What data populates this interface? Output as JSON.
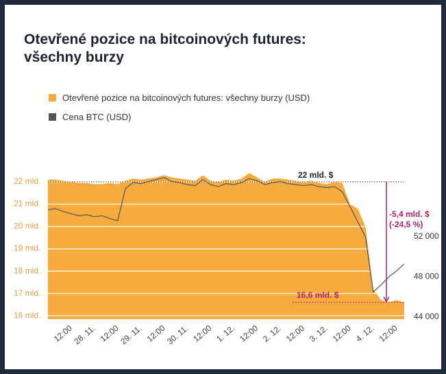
{
  "chart_data": {
    "type": "area-line",
    "title": "Otevřené pozice na bitcoinových futures: všechny burzy",
    "x": [
      0,
      4,
      8,
      12,
      16,
      20,
      24,
      28,
      32,
      36,
      40,
      44,
      48,
      52,
      56,
      60,
      64,
      68,
      72,
      76,
      80,
      84,
      88,
      92,
      96,
      100,
      104,
      108,
      112,
      116,
      120,
      124,
      128,
      132,
      136,
      140,
      144,
      148,
      152,
      156,
      160,
      164,
      168,
      172,
      176,
      180,
      184
    ],
    "xlim": [
      0,
      184
    ],
    "xticks": [
      {
        "value": 12,
        "label": "12:00"
      },
      {
        "value": 24,
        "label": "28. 11."
      },
      {
        "value": 36,
        "label": "12:00"
      },
      {
        "value": 48,
        "label": "29. 11."
      },
      {
        "value": 60,
        "label": "12:00"
      },
      {
        "value": 72,
        "label": "30. 11."
      },
      {
        "value": 84,
        "label": "12:00"
      },
      {
        "value": 96,
        "label": "1. 12."
      },
      {
        "value": 108,
        "label": "12:00"
      },
      {
        "value": 120,
        "label": "2. 12."
      },
      {
        "value": 132,
        "label": "12:00"
      },
      {
        "value": 144,
        "label": "3. 12."
      },
      {
        "value": 156,
        "label": "12:00"
      },
      {
        "value": 168,
        "label": "4. 12."
      },
      {
        "value": 180,
        "label": "12:00"
      }
    ],
    "series": [
      {
        "name": "Otevřené pozice na bitcoinových futures: všechny burzy (USD)",
        "color": "#f5ab3e",
        "values": [
          22.1,
          22.1,
          22.05,
          22.0,
          21.95,
          21.95,
          21.9,
          21.9,
          21.95,
          21.9,
          22.05,
          22.15,
          22.1,
          22.15,
          22.2,
          22.3,
          22.2,
          22.15,
          22.1,
          22.05,
          22.3,
          22.05,
          22.0,
          22.1,
          22.05,
          22.15,
          22.4,
          22.2,
          22.0,
          22.15,
          22.15,
          22.1,
          22.05,
          22.0,
          22.05,
          21.95,
          21.9,
          22.0,
          21.95,
          21.0,
          20.8,
          20.0,
          17.2,
          16.7,
          16.6,
          16.7,
          16.6
        ]
      },
      {
        "name": "Cena BTC (USD)",
        "color": "#555555",
        "axis": "y2",
        "values": [
          54700,
          54800,
          54500,
          54300,
          54100,
          54200,
          54000,
          54100,
          53800,
          53600,
          56800,
          57400,
          57300,
          57500,
          57700,
          57900,
          57500,
          57400,
          57200,
          57100,
          57700,
          57200,
          57000,
          57300,
          57200,
          57400,
          57800,
          57600,
          57200,
          57400,
          57500,
          57300,
          57200,
          57100,
          57200,
          57000,
          56900,
          57000,
          56500,
          55000,
          53500,
          52000,
          46500,
          47200,
          48000,
          48600,
          49300
        ]
      }
    ],
    "ylim": [
      15.85,
      22.8
    ],
    "yticks": [
      {
        "value": 16,
        "label": "16 mld."
      },
      {
        "value": 17,
        "label": "17 mld."
      },
      {
        "value": 18,
        "label": "18 mld."
      },
      {
        "value": 19,
        "label": "19 mld."
      },
      {
        "value": 20,
        "label": "20 mld."
      },
      {
        "value": 21,
        "label": "21 mld."
      },
      {
        "value": 22,
        "label": "22 mld."
      }
    ],
    "y2lim": [
      43800,
      59250
    ],
    "y2ticks": [
      {
        "value": 44000,
        "label": "44 000"
      },
      {
        "value": 48000,
        "label": "48 000"
      },
      {
        "value": 52000,
        "label": "52 000"
      }
    ],
    "grid": true,
    "annotations": [
      {
        "text": "22 mld. $",
        "value": 22
      },
      {
        "text": "16,6 mld. $",
        "value": 16.6
      },
      {
        "text": "-5,4 mld. $"
      },
      {
        "text": "(-24,5 %)"
      }
    ]
  }
}
